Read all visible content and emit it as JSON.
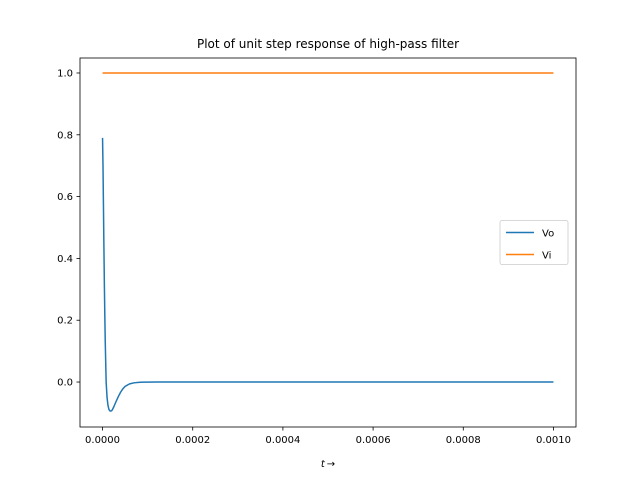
{
  "chart_data": {
    "type": "line",
    "title": "Plot of unit step response of high-pass filter",
    "xlabel": "t →",
    "ylabel": "",
    "xlim": [
      -5e-05,
      0.00105
    ],
    "ylim": [
      -0.1455,
      1.0485
    ],
    "x_ticks": [
      0.0,
      0.0002,
      0.0004,
      0.0006,
      0.0008,
      0.001
    ],
    "x_tick_labels": [
      "0.0000",
      "0.0002",
      "0.0004",
      "0.0006",
      "0.0008",
      "0.0010"
    ],
    "y_ticks": [
      0.0,
      0.2,
      0.4,
      0.6,
      0.8,
      1.0
    ],
    "y_tick_labels": [
      "0.0",
      "0.2",
      "0.4",
      "0.6",
      "0.8",
      "1.0"
    ],
    "grid": false,
    "legend_position": "center-right",
    "series": [
      {
        "name": "Vo",
        "color": "#1f77b4",
        "x": [
          0.0,
          1e-06,
          2e-06,
          3e-06,
          4e-06,
          5e-06,
          6e-06,
          8e-06,
          1e-05,
          1.2e-05,
          1.4e-05,
          1.6e-05,
          1.8e-05,
          2e-05,
          2.2e-05,
          2.5e-05,
          3e-05,
          3.5e-05,
          4e-05,
          4.5e-05,
          5e-05,
          6e-05,
          7e-05,
          8e-05,
          9e-05,
          0.0001,
          0.00012,
          0.00015,
          0.0002,
          0.0003,
          0.0005,
          0.0007,
          0.001
        ],
        "values": [
          0.79,
          0.7,
          0.57,
          0.44,
          0.32,
          0.22,
          0.13,
          0.0,
          -0.05,
          -0.075,
          -0.088,
          -0.093,
          -0.094,
          -0.093,
          -0.089,
          -0.08,
          -0.063,
          -0.047,
          -0.033,
          -0.022,
          -0.014,
          -0.006,
          -0.0025,
          -0.001,
          -0.0004,
          -0.00015,
          0.0,
          0.0,
          0.0,
          0.0,
          0.0,
          0.0,
          0.0
        ]
      },
      {
        "name": "Vi",
        "color": "#ff7f0e",
        "x": [
          0.0,
          0.001
        ],
        "values": [
          1.0,
          1.0
        ]
      }
    ]
  }
}
